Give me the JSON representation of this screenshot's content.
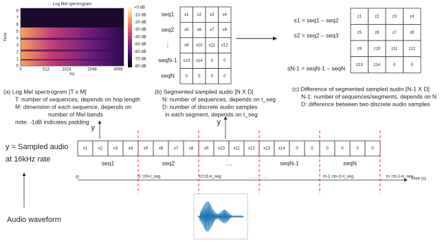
{
  "spectrogram": {
    "title": "Log Mel spectrogram",
    "y_label": "Time",
    "y_ticks": [
      "8",
      "7",
      "6",
      "5",
      "4",
      "3",
      "2",
      "1",
      "0"
    ],
    "x_label": "Hz",
    "x_ticks": [
      "0",
      "512",
      "1024",
      "2048",
      "4096"
    ],
    "colorbar": [
      "+0 dB",
      "-10 dB",
      "-20 dB",
      "-30 dB",
      "-40 dB",
      "-50 dB",
      "-60 dB",
      "-70 dB",
      "-80 dB"
    ]
  },
  "caption_a": [
    "(a)  Log Mel spectrogram [T x M]",
    "T: number of sequences, depends on hop length",
    "M: dimension of each sequence, depends on",
    "number of Mel bands",
    "note: -1dB indicates padding"
  ],
  "matrix_b": {
    "row_labels": [
      "seq1",
      "seq2",
      "⋮",
      "seqN-1",
      "seqN"
    ],
    "rows": [
      [
        "x1",
        "x2",
        "x3",
        "x4"
      ],
      [
        "x5",
        "x6",
        "x7",
        "x8"
      ],
      [
        "x9",
        "x10",
        "x11",
        "x12"
      ],
      [
        "x13",
        "x14",
        "0",
        "0"
      ],
      [
        "0",
        "0",
        "0",
        "0"
      ]
    ]
  },
  "caption_b": [
    "(b) Segmented sampled audio [N X D]",
    "N: number of sequences, depends on t_seg",
    "D: number of discrete audio samples",
    "in each segment, depends on t_seg"
  ],
  "matrix_c": {
    "row_labels": [
      "s1 = seq1 – seq2",
      "s2 = seq2 – seq3",
      "sN-1 = seqN-1 – seqN"
    ],
    "rows": [
      [
        "z1",
        "z2",
        "z3",
        "z4"
      ],
      [
        "z5",
        "z6",
        "z7",
        "z8"
      ],
      [
        "z9",
        "z10",
        "z11",
        "z12"
      ],
      [
        "z13",
        "z14",
        "0",
        "0"
      ]
    ]
  },
  "caption_c": [
    "(c) Difference of segmented sampled audio [N-1 X D]",
    "N-1: number of sequences/segments, depends on N",
    "D: difference between two discrete audio samples"
  ],
  "timeline": {
    "audio_label": [
      "y = Sampled audio",
      "at 16kHz rate"
    ],
    "arrow_labels": [
      "y",
      "y"
    ],
    "samples": [
      "x1",
      "x2",
      "x3",
      "x4",
      "x5",
      "x6",
      "x7",
      "x8",
      "x9",
      "x10",
      "x11",
      "x12",
      "x13",
      "x14",
      "0",
      "0",
      "0",
      "0",
      "0",
      "0"
    ],
    "segments": [
      "seq1",
      "seq2",
      "....",
      "seqN-1",
      "seqN"
    ],
    "times": [
      "t0",
      "t1 =t0+t_seg",
      "t2=t1+t_seg",
      ". . . . . . . . .",
      "tn-1 =tn-2+t_seg",
      "tn =tn-1+t_seg"
    ],
    "axis_label": "Time (s)"
  },
  "waveform_label": "Audio waveform"
}
